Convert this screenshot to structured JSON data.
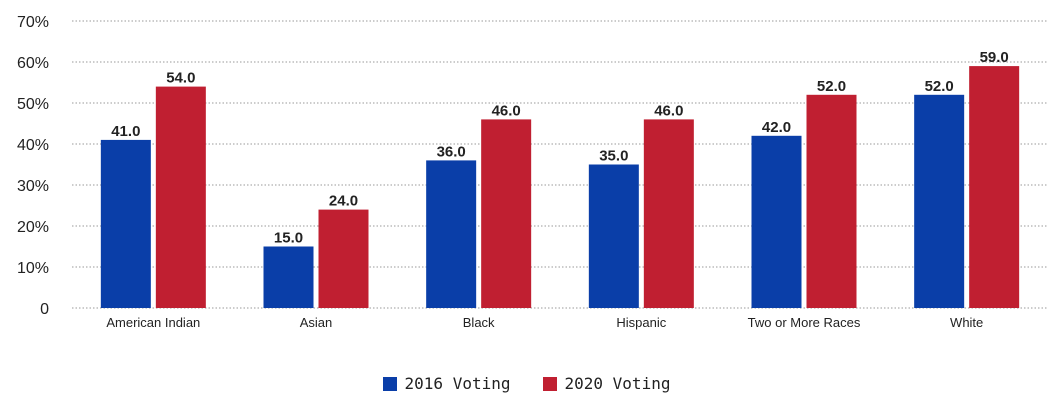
{
  "chart_data": {
    "type": "bar",
    "categories": [
      "American Indian",
      "Asian",
      "Black",
      "Hispanic",
      "Two or More Races",
      "White"
    ],
    "series": [
      {
        "name": "2016 Voting",
        "color": "#0a3ea8",
        "values": [
          41.0,
          15.0,
          36.0,
          35.0,
          42.0,
          52.0
        ]
      },
      {
        "name": "2020 Voting",
        "color": "#c01f31",
        "values": [
          54.0,
          24.0,
          46.0,
          46.0,
          52.0,
          59.0
        ]
      }
    ],
    "title": "",
    "xlabel": "",
    "ylabel": "",
    "ylim": [
      0,
      70
    ],
    "yticks": [
      0,
      10,
      20,
      30,
      40,
      50,
      60,
      70
    ],
    "ytick_labels": [
      "0",
      "10%",
      "20%",
      "30%",
      "40%",
      "50%",
      "60%",
      "70%"
    ],
    "data_label_format": "1 decimal",
    "grid": true,
    "legend_position": "bottom-center"
  }
}
